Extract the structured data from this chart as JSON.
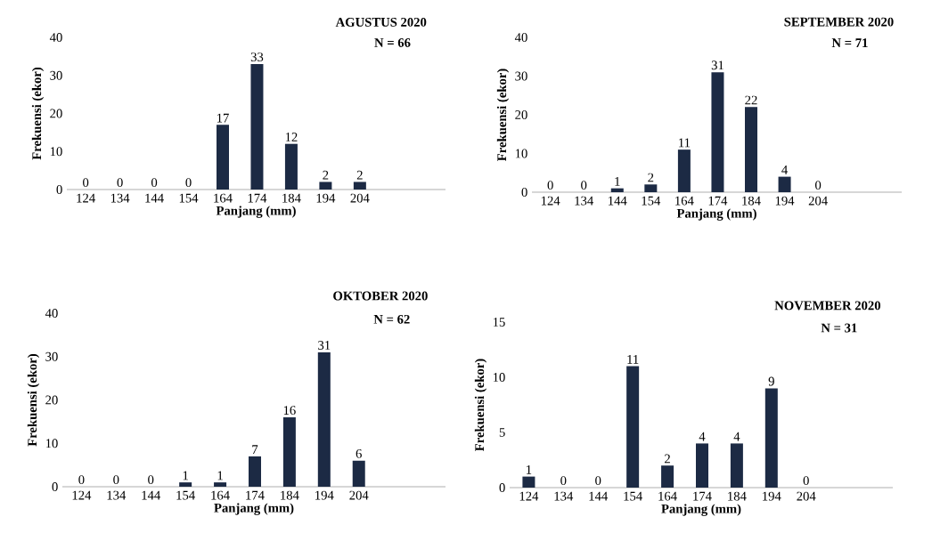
{
  "chart_data": [
    {
      "type": "bar",
      "title": "AGUSTUS 2020",
      "subtitle": "N = 66",
      "xlabel": "Panjang (mm)",
      "ylabel": "Frekuensi (ekor)",
      "categories": [
        "124",
        "134",
        "144",
        "154",
        "164",
        "174",
        "184",
        "194",
        "204"
      ],
      "values": [
        0,
        0,
        0,
        0,
        17,
        33,
        12,
        2,
        2
      ],
      "color": "#1c2a44",
      "ylim": [
        0,
        40
      ],
      "yticks": [
        0,
        10,
        20,
        30,
        40
      ],
      "data_labels": true
    },
    {
      "type": "bar",
      "title": "SEPTEMBER 2020",
      "subtitle": "N = 71",
      "xlabel": "Panjang (mm)",
      "ylabel": "Frekuensi (ekor)",
      "categories": [
        "124",
        "134",
        "144",
        "154",
        "164",
        "174",
        "184",
        "194",
        "204"
      ],
      "values": [
        0,
        0,
        1,
        2,
        11,
        31,
        22,
        4,
        0
      ],
      "color": "#1c2a44",
      "ylim": [
        0,
        40
      ],
      "yticks": [
        0,
        10,
        20,
        30,
        40
      ],
      "data_labels": true
    },
    {
      "type": "bar",
      "title": "OKTOBER 2020",
      "subtitle": "N = 62",
      "xlabel": "Panjang (mm)",
      "ylabel": "Frekuensi (ekor)",
      "categories": [
        "124",
        "134",
        "144",
        "154",
        "164",
        "174",
        "184",
        "194",
        "204"
      ],
      "values": [
        0,
        0,
        0,
        1,
        1,
        7,
        16,
        31,
        6
      ],
      "color": "#1c2a44",
      "ylim": [
        0,
        40
      ],
      "yticks": [
        0,
        10,
        20,
        30,
        40
      ],
      "data_labels": true
    },
    {
      "type": "bar",
      "title": "NOVEMBER 2020",
      "subtitle": "N = 31",
      "xlabel": "Panjang (mm)",
      "ylabel": "Frekuensi (ekor)",
      "categories": [
        "124",
        "134",
        "144",
        "154",
        "164",
        "174",
        "184",
        "194",
        "204"
      ],
      "values": [
        1,
        0,
        0,
        11,
        2,
        4,
        4,
        9,
        0
      ],
      "color": "#1c2a44",
      "ylim": [
        0,
        15
      ],
      "yticks": [
        0,
        5,
        10,
        15
      ],
      "data_labels": true
    }
  ]
}
